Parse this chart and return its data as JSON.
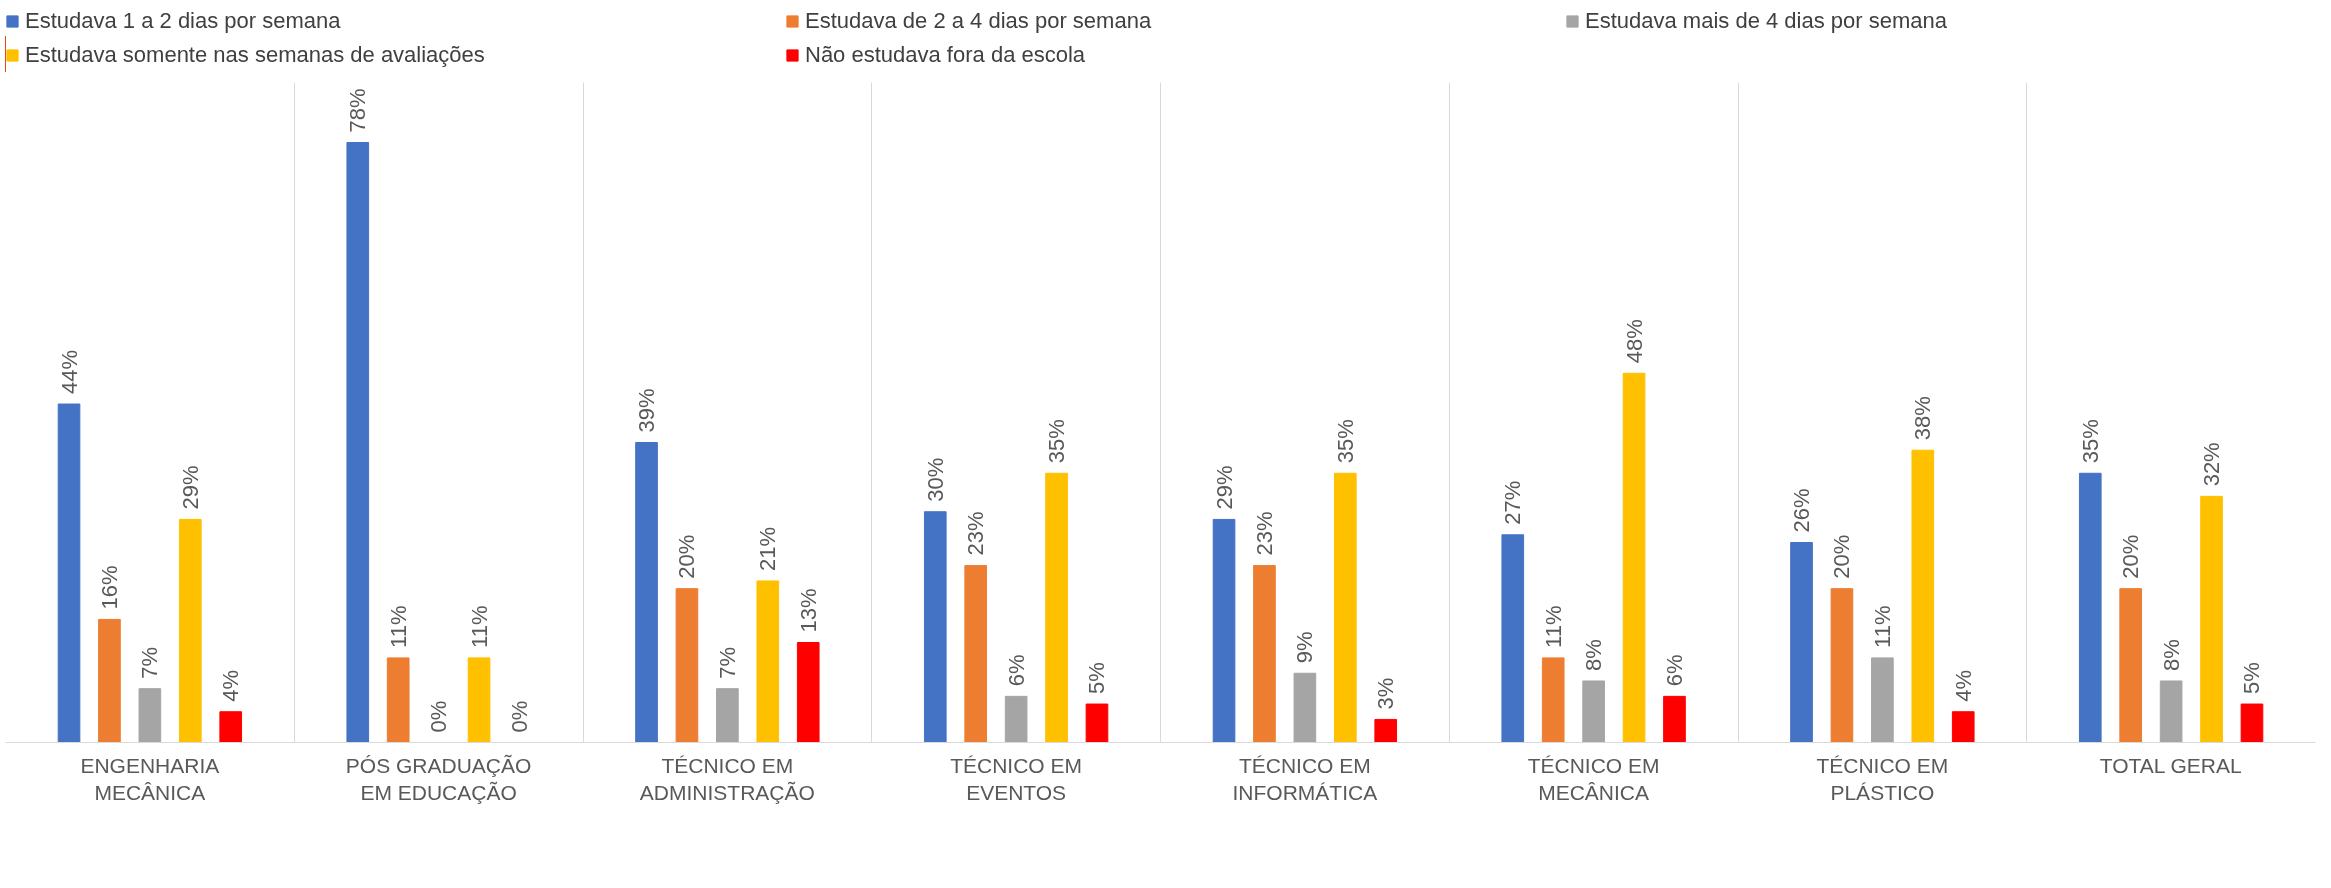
{
  "chart_data": {
    "type": "bar",
    "categories": [
      "ENGENHARIA MECÂNICA",
      "PÓS GRADUAÇÃO EM EDUCAÇÃO",
      "TÉCNICO EM ADMINISTRAÇÃO",
      "TÉCNICO EM EVENTOS",
      "TÉCNICO EM INFORMÁTICA",
      "TÉCNICO EM MECÂNICA",
      "TÉCNICO EM PLÁSTICO",
      "TOTAL GERAL"
    ],
    "series": [
      {
        "name": "Estudava 1 a 2 dias por semana",
        "color": "#4472c4",
        "values": [
          44,
          78,
          39,
          30,
          29,
          27,
          26,
          35
        ],
        "value_labels": [
          "44%",
          "78%",
          "39%",
          "30%",
          "29%",
          "27%",
          "26%",
          "35%"
        ]
      },
      {
        "name": "Estudava de 2 a 4 dias por semana",
        "color": "#ed7d31",
        "values": [
          16,
          11,
          20,
          23,
          23,
          11,
          20,
          20
        ],
        "value_labels": [
          "16%",
          "11%",
          "20%",
          "23%",
          "23%",
          "11%",
          "20%",
          "20%"
        ]
      },
      {
        "name": "Estudava mais de 4 dias por semana",
        "color": "#a5a5a5",
        "values": [
          7,
          0,
          7,
          6,
          9,
          8,
          11,
          8
        ],
        "value_labels": [
          "7%",
          "0%",
          "7%",
          "6%",
          "9%",
          "8%",
          "11%",
          "8%"
        ]
      },
      {
        "name": "Estudava somente nas semanas de avaliações",
        "color": "#ffc000",
        "values": [
          29,
          11,
          21,
          35,
          35,
          48,
          38,
          32
        ],
        "value_labels": [
          "29%",
          "11%",
          "21%",
          "35%",
          "35%",
          "48%",
          "38%",
          "32%"
        ]
      },
      {
        "name": "Não estudava fora da escola",
        "color": "#ff0000",
        "values": [
          4,
          0,
          13,
          5,
          3,
          6,
          4,
          5
        ],
        "value_labels": [
          "4%",
          "0%",
          "13%",
          "5%",
          "3%",
          "6%",
          "4%",
          "5%"
        ]
      }
    ],
    "tick_labels": "x",
    "grid": "x",
    "legend": "top"
  }
}
